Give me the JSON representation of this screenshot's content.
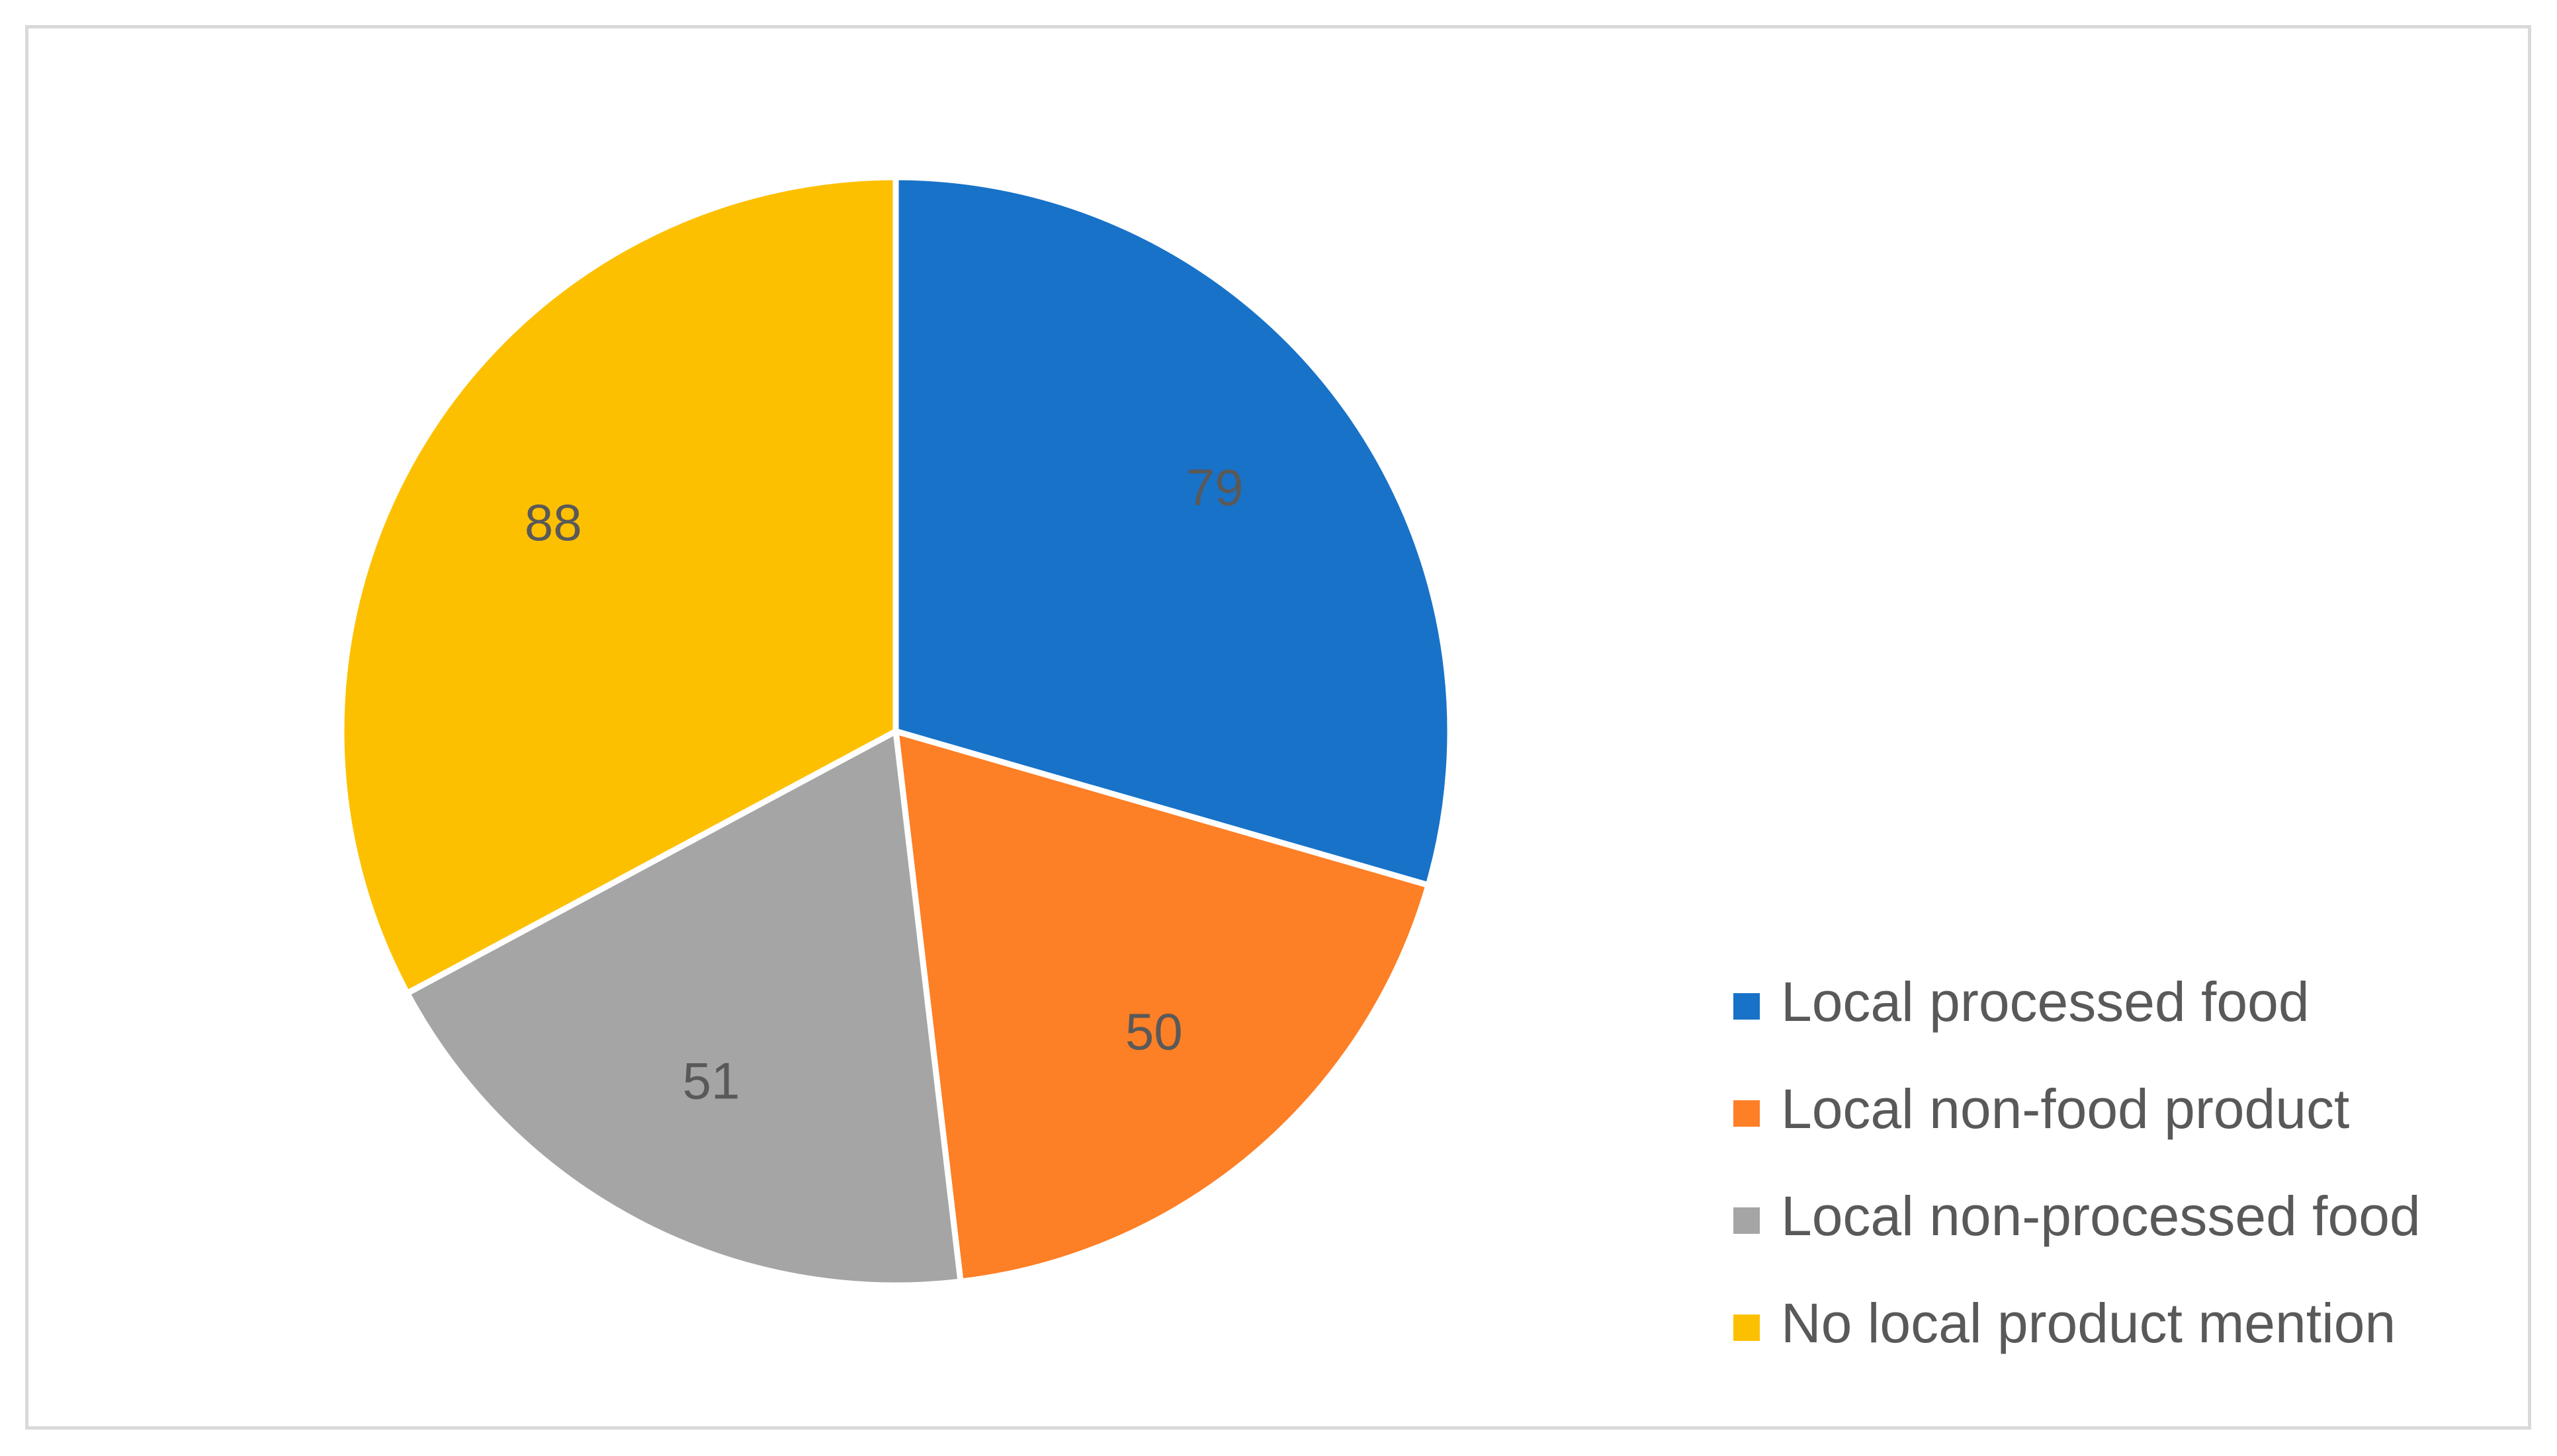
{
  "chart_data": {
    "type": "pie",
    "title": "",
    "slices": [
      {
        "label": "Local processed food",
        "value": 79,
        "color": "#1872C8"
      },
      {
        "label": "Local non-food product",
        "value": 50,
        "color": "#FD7F26"
      },
      {
        "label": "Local non-processed food",
        "value": 51,
        "color": "#A5A5A5"
      },
      {
        "label": "No local product mention",
        "value": 88,
        "color": "#FDC000"
      }
    ],
    "data_labels_shown": true,
    "start_angle_deg": 0,
    "direction": "clockwise",
    "legend_position": "bottom-right"
  }
}
